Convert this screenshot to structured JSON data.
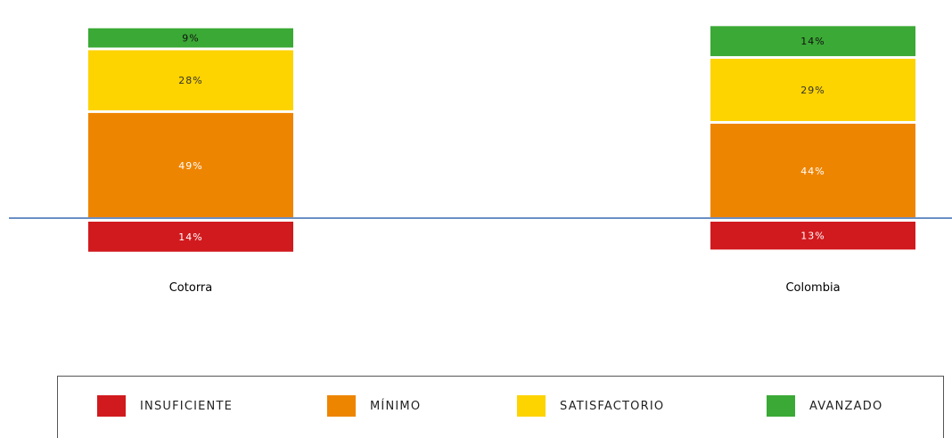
{
  "chart_data": {
    "type": "bar",
    "stacked": true,
    "categories": [
      "Cotorra",
      "Colombia"
    ],
    "series": [
      {
        "name": "INSUFICIENTE",
        "color": "#D11A1E",
        "label_color": "#FFFFFF",
        "values": [
          14,
          13
        ],
        "labels": [
          "14%",
          "13%"
        ],
        "baseline_side": "below"
      },
      {
        "name": "MÍNIMO",
        "color": "#EE8500",
        "label_color": "#FFFFFF",
        "values": [
          49,
          44
        ],
        "labels": [
          "49%",
          "44%"
        ],
        "baseline_side": "above"
      },
      {
        "name": "SATISFACTORIO",
        "color": "#FDD300",
        "label_color": "#333333",
        "values": [
          28,
          29
        ],
        "labels": [
          "28%",
          "29%"
        ],
        "baseline_side": "above"
      },
      {
        "name": "AVANZADO",
        "color": "#3BA935",
        "label_color": "#111111",
        "values": [
          9,
          14
        ],
        "labels": [
          "9%",
          "14%"
        ],
        "baseline_side": "above"
      }
    ],
    "baseline_color": "#6A8FC4",
    "grid": false,
    "legend_position": "bottom"
  },
  "legend": {
    "items": [
      {
        "label": "INSUFICIENTE",
        "color": "#D11A1E"
      },
      {
        "label": "MÍNIMO",
        "color": "#EE8500"
      },
      {
        "label": "SATISFACTORIO",
        "color": "#FDD300"
      },
      {
        "label": "AVANZADO",
        "color": "#3BA935"
      }
    ]
  }
}
